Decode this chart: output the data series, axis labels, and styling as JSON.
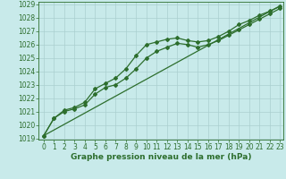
{
  "xlabel": "Graphe pression niveau de la mer (hPa)",
  "xlim": [
    -0.5,
    23.3
  ],
  "ylim": [
    1018.9,
    1029.2
  ],
  "yticks": [
    1019,
    1020,
    1021,
    1022,
    1023,
    1024,
    1025,
    1026,
    1027,
    1028,
    1029
  ],
  "xticks": [
    0,
    1,
    2,
    3,
    4,
    5,
    6,
    7,
    8,
    9,
    10,
    11,
    12,
    13,
    14,
    15,
    16,
    17,
    18,
    19,
    20,
    21,
    22,
    23
  ],
  "bg_color": "#c8eaea",
  "grid_color": "#aacfcf",
  "line_color": "#2d6e2d",
  "text_color": "#2d6e2d",
  "line1_x": [
    0,
    1,
    2,
    3,
    4,
    5,
    6,
    7,
    8,
    9,
    10,
    11,
    12,
    13,
    14,
    15,
    16,
    17,
    18,
    19,
    20,
    21,
    22,
    23
  ],
  "line1": [
    1019.2,
    1020.5,
    1021.1,
    1021.3,
    1021.7,
    1022.7,
    1023.1,
    1023.5,
    1024.2,
    1025.2,
    1026.0,
    1026.2,
    1026.4,
    1026.5,
    1026.3,
    1026.2,
    1026.3,
    1026.6,
    1027.0,
    1027.5,
    1027.8,
    1028.2,
    1028.5,
    1028.85
  ],
  "line2_x": [
    0,
    1,
    2,
    3,
    4,
    5,
    6,
    7,
    8,
    9,
    10,
    11,
    12,
    13,
    14,
    15,
    16,
    17,
    18,
    19,
    20,
    21,
    22,
    23
  ],
  "line2": [
    1019.2,
    1020.5,
    1021.0,
    1021.2,
    1021.5,
    1022.3,
    1022.8,
    1023.0,
    1023.5,
    1024.2,
    1025.0,
    1025.5,
    1025.8,
    1026.1,
    1026.0,
    1025.8,
    1026.0,
    1026.3,
    1026.7,
    1027.1,
    1027.5,
    1027.9,
    1028.3,
    1028.7
  ],
  "line3_x": [
    0,
    23
  ],
  "line3": [
    1019.2,
    1028.9
  ],
  "marker": "D",
  "markersize": 2.0,
  "linewidth": 0.9,
  "tick_fontsize": 5.5,
  "label_fontsize": 6.5
}
